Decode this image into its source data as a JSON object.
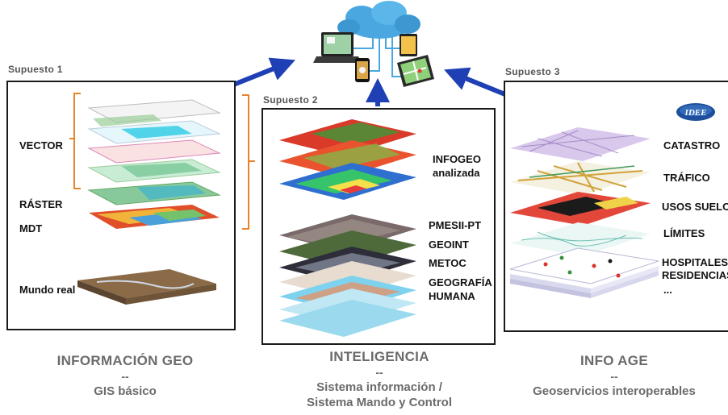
{
  "cases": [
    {
      "title": "Supuesto 1",
      "layers": [
        "VECTOR",
        "RÁSTER",
        "MDT",
        "Mundo real"
      ]
    },
    {
      "title": "Supuesto 2",
      "layers": [
        "INFOGEO",
        "analizada",
        "PMESII-PT",
        "GEOINT",
        "METOC",
        "GEOGRAFÍA",
        "HUMANA"
      ]
    },
    {
      "title": "Supuesto 3",
      "logo": "IDEE",
      "layers": [
        "CATASTRO",
        "TRÁFICO",
        "USOS SUELO",
        "LÍMITES",
        "HOSPITALES",
        "RESIDENCIAS",
        "..."
      ]
    }
  ],
  "captions": [
    {
      "title": "INFORMACIÓN GEO",
      "separator": "--",
      "lines": [
        "GIS básico"
      ]
    },
    {
      "title": "INTELIGENCIA",
      "separator": "--",
      "lines": [
        "Sistema información /",
        "Sistema Mando y Control"
      ]
    },
    {
      "title": "INFO AGE",
      "separator": "--",
      "lines": [
        "Geoservicios interoperables"
      ]
    }
  ],
  "icons": {
    "cloud": "cloud-icon",
    "devices": [
      "laptop-icon",
      "phone-icon",
      "tablet-icon",
      "tablet-map-icon"
    ],
    "arrows": "blue-arrow-icon"
  },
  "colors": {
    "arrow": "#1f3fb4",
    "bracket": "#e8832a",
    "panel_border": "#1a1a1a",
    "caption": "#6b6b6b",
    "cloud": "#4aa7e0"
  }
}
